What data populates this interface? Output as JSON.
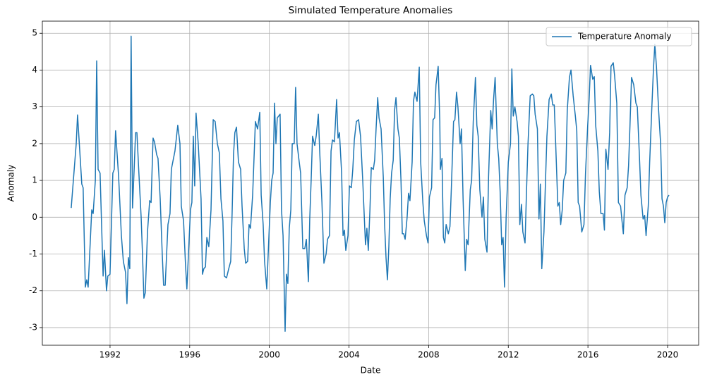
{
  "chart_data": {
    "type": "line",
    "title": "Simulated Temperature Anomalies",
    "xlabel": "Date",
    "ylabel": "Anomaly",
    "x": [
      1990.05,
      1990.3,
      1990.37,
      1990.58,
      1990.65,
      1990.76,
      1990.83,
      1990.9,
      1991.08,
      1991.15,
      1991.26,
      1991.33,
      1991.4,
      1991.5,
      1991.65,
      1991.72,
      1991.82,
      1991.89,
      1992.0,
      1992.14,
      1992.21,
      1992.28,
      1992.43,
      1992.57,
      1992.67,
      1992.78,
      1992.85,
      1992.92,
      1992.99,
      1993.06,
      1993.13,
      1993.21,
      1993.28,
      1993.35,
      1993.45,
      1993.56,
      1993.63,
      1993.7,
      1993.77,
      1993.88,
      1993.99,
      1994.06,
      1994.16,
      1994.23,
      1994.34,
      1994.41,
      1994.52,
      1994.62,
      1994.69,
      1994.77,
      1994.91,
      1995.01,
      1995.08,
      1995.26,
      1995.4,
      1995.51,
      1995.58,
      1995.69,
      1995.79,
      1995.86,
      1995.97,
      1996.04,
      1996.11,
      1996.18,
      1996.25,
      1996.32,
      1996.43,
      1996.57,
      1996.64,
      1996.71,
      1996.79,
      1996.86,
      1996.96,
      1997.07,
      1997.18,
      1997.28,
      1997.39,
      1997.49,
      1997.57,
      1997.67,
      1997.74,
      1997.85,
      1997.96,
      1998.06,
      1998.13,
      1998.2,
      1998.27,
      1998.35,
      1998.45,
      1998.56,
      1998.63,
      1998.74,
      1998.81,
      1998.91,
      1998.98,
      1999.05,
      1999.16,
      1999.3,
      1999.41,
      1999.52,
      1999.59,
      1999.69,
      1999.76,
      1999.87,
      1999.98,
      2000.05,
      2000.12,
      2000.19,
      2000.26,
      2000.33,
      2000.4,
      2000.54,
      2000.61,
      2000.69,
      2000.79,
      2000.86,
      2000.93,
      2001.0,
      2001.08,
      2001.15,
      2001.25,
      2001.32,
      2001.39,
      2001.5,
      2001.57,
      2001.68,
      2001.78,
      2001.86,
      2001.96,
      2002.03,
      2002.1,
      2002.17,
      2002.28,
      2002.35,
      2002.46,
      2002.53,
      2002.64,
      2002.74,
      2002.85,
      2002.92,
      2003.02,
      2003.1,
      2003.17,
      2003.27,
      2003.38,
      2003.45,
      2003.52,
      2003.63,
      2003.7,
      2003.77,
      2003.84,
      2003.95,
      2004.02,
      2004.12,
      2004.19,
      2004.27,
      2004.37,
      2004.48,
      2004.58,
      2004.69,
      2004.76,
      2004.83,
      2004.9,
      2004.97,
      2005.05,
      2005.12,
      2005.22,
      2005.29,
      2005.36,
      2005.44,
      2005.51,
      2005.61,
      2005.72,
      2005.79,
      2005.86,
      2005.93,
      2006.0,
      2006.07,
      2006.14,
      2006.22,
      2006.29,
      2006.36,
      2006.46,
      2006.53,
      2006.61,
      2006.68,
      2006.75,
      2006.82,
      2006.92,
      2006.99,
      2007.06,
      2007.17,
      2007.24,
      2007.31,
      2007.42,
      2007.53,
      2007.6,
      2007.71,
      2007.78,
      2007.89,
      2007.97,
      2008.04,
      2008.15,
      2008.22,
      2008.3,
      2008.37,
      2008.48,
      2008.56,
      2008.59,
      2008.67,
      2008.74,
      2008.81,
      2008.88,
      2008.99,
      2009.07,
      2009.14,
      2009.25,
      2009.32,
      2009.4,
      2009.47,
      2009.58,
      2009.65,
      2009.73,
      2009.84,
      2009.91,
      2009.98,
      2010.09,
      2010.16,
      2010.24,
      2010.35,
      2010.42,
      2010.49,
      2010.57,
      2010.68,
      2010.75,
      2010.82,
      2010.93,
      2011.01,
      2011.12,
      2011.19,
      2011.26,
      2011.34,
      2011.45,
      2011.52,
      2011.59,
      2011.67,
      2011.74,
      2011.81,
      2011.89,
      2012.0,
      2012.11,
      2012.18,
      2012.25,
      2012.33,
      2012.44,
      2012.51,
      2012.58,
      2012.66,
      2012.73,
      2012.84,
      2012.91,
      2012.99,
      2013.1,
      2013.21,
      2013.28,
      2013.35,
      2013.46,
      2013.54,
      2013.61,
      2013.68,
      2013.79,
      2013.87,
      2013.94,
      2014.05,
      2014.16,
      2014.23,
      2014.31,
      2014.38,
      2014.49,
      2014.56,
      2014.63,
      2014.71,
      2014.78,
      2014.89,
      2014.96,
      2015.07,
      2015.15,
      2015.26,
      2015.37,
      2015.44,
      2015.51,
      2015.58,
      2015.69,
      2015.8,
      2015.88,
      2015.99,
      2016.06,
      2016.13,
      2016.24,
      2016.32,
      2016.39,
      2016.5,
      2016.57,
      2016.65,
      2016.76,
      2016.83,
      2016.9,
      2017.01,
      2017.09,
      2017.16,
      2017.27,
      2017.34,
      2017.45,
      2017.53,
      2017.64,
      2017.71,
      2017.78,
      2017.86,
      2017.97,
      2018.04,
      2018.11,
      2018.19,
      2018.3,
      2018.41,
      2018.48,
      2018.59,
      2018.66,
      2018.77,
      2018.85,
      2018.92,
      2019.03,
      2019.1,
      2019.21,
      2019.29,
      2019.36,
      2019.44,
      2019.55,
      2019.65,
      2019.72,
      2019.79,
      2019.86,
      2019.93,
      2020.0,
      2020.07
    ],
    "series": [
      {
        "name": "Temperature Anomaly",
        "color": "#1f77b4",
        "values": [
          0.25,
          2.0,
          2.78,
          0.9,
          0.8,
          -1.9,
          -1.7,
          -1.9,
          0.2,
          0.1,
          1.0,
          4.25,
          1.3,
          1.2,
          -1.6,
          -0.9,
          -2.0,
          -1.6,
          -1.55,
          1.2,
          1.3,
          2.35,
          1.1,
          -0.5,
          -1.2,
          -1.5,
          -2.35,
          -1.1,
          -1.4,
          4.92,
          0.25,
          1.3,
          2.3,
          2.3,
          1.2,
          0.0,
          -1.0,
          -2.2,
          -2.05,
          -0.4,
          0.45,
          0.4,
          2.15,
          2.05,
          1.7,
          1.6,
          0.5,
          -1.0,
          -1.85,
          -1.85,
          -0.2,
          0.1,
          1.3,
          1.8,
          2.5,
          2.0,
          0.3,
          -0.1,
          -1.3,
          -1.95,
          -0.6,
          0.2,
          0.4,
          2.2,
          0.85,
          2.83,
          2.0,
          0.5,
          -1.55,
          -1.4,
          -1.35,
          -0.55,
          -0.8,
          0.2,
          2.65,
          2.6,
          2.0,
          1.75,
          0.5,
          -0.1,
          -1.6,
          -1.65,
          -1.4,
          -1.2,
          0.1,
          1.7,
          2.3,
          2.45,
          1.5,
          1.3,
          0.3,
          -0.85,
          -1.25,
          -1.2,
          -0.2,
          -0.3,
          0.6,
          2.6,
          2.4,
          2.85,
          0.6,
          -0.2,
          -1.2,
          -1.95,
          -0.5,
          0.4,
          1.0,
          1.2,
          3.1,
          2.0,
          2.7,
          2.8,
          0.2,
          -0.5,
          -3.1,
          -1.55,
          -1.8,
          -0.3,
          0.2,
          2.0,
          2.0,
          3.53,
          2.0,
          1.5,
          1.2,
          -0.85,
          -0.85,
          -0.6,
          -1.75,
          -0.05,
          1.0,
          2.2,
          1.95,
          2.2,
          2.8,
          1.8,
          0.4,
          -1.25,
          -1.0,
          -0.6,
          -0.5,
          1.8,
          2.1,
          2.05,
          3.2,
          2.15,
          2.3,
          1.2,
          -0.5,
          -0.35,
          -0.9,
          -0.5,
          0.85,
          0.8,
          1.3,
          2.1,
          2.6,
          2.65,
          2.2,
          1.0,
          0.1,
          -0.75,
          -0.3,
          -0.9,
          0.2,
          1.35,
          1.3,
          1.55,
          2.4,
          3.25,
          2.7,
          2.4,
          1.1,
          -0.2,
          -1.1,
          -1.7,
          -0.8,
          0.5,
          1.2,
          1.55,
          2.9,
          3.25,
          2.4,
          2.15,
          1.0,
          -0.45,
          -0.45,
          -0.6,
          0.0,
          0.65,
          0.45,
          1.5,
          3.15,
          3.4,
          3.15,
          4.08,
          1.5,
          0.4,
          -0.1,
          -0.5,
          -0.7,
          0.55,
          0.8,
          2.65,
          2.7,
          3.6,
          4.1,
          2.6,
          1.3,
          1.6,
          -0.55,
          -0.7,
          -0.2,
          -0.45,
          -0.25,
          0.8,
          2.6,
          2.65,
          3.4,
          3.0,
          2.0,
          2.4,
          0.5,
          -1.45,
          -0.6,
          -0.75,
          0.75,
          1.0,
          2.6,
          3.8,
          2.5,
          2.2,
          0.75,
          0.0,
          0.55,
          -0.6,
          -0.95,
          1.1,
          2.9,
          2.4,
          3.2,
          3.8,
          2.0,
          1.6,
          0.7,
          -0.75,
          -0.55,
          -1.9,
          0.0,
          1.5,
          2.0,
          4.03,
          2.75,
          3.0,
          2.6,
          2.2,
          -0.2,
          0.35,
          -0.4,
          -0.7,
          0.6,
          2.0,
          3.3,
          3.35,
          3.3,
          2.8,
          2.4,
          -0.05,
          0.9,
          -1.4,
          -0.4,
          1.0,
          2.2,
          3.2,
          3.35,
          3.05,
          3.05,
          2.0,
          0.3,
          0.4,
          -0.2,
          0.2,
          1.0,
          1.2,
          2.9,
          3.8,
          4.0,
          3.3,
          2.75,
          2.35,
          0.4,
          0.3,
          -0.4,
          -0.2,
          1.2,
          2.5,
          3.2,
          4.13,
          3.75,
          3.82,
          2.5,
          1.8,
          0.7,
          0.1,
          0.1,
          -0.35,
          1.85,
          1.3,
          2.3,
          4.1,
          4.2,
          3.85,
          3.1,
          0.4,
          0.3,
          -0.1,
          -0.45,
          0.6,
          0.8,
          1.4,
          2.5,
          3.8,
          3.6,
          3.1,
          3.0,
          1.6,
          0.6,
          -0.05,
          0.05,
          -0.5,
          0.3,
          1.5,
          3.0,
          4.0,
          4.7,
          4.1,
          2.9,
          2.0,
          0.5,
          0.3,
          -0.15,
          0.4,
          0.55,
          0.6
        ]
      }
    ],
    "xlim": [
      1988.6,
      2021.56
    ],
    "ylim": [
      -3.48,
      5.33
    ],
    "xticks": [
      1992,
      1996,
      2000,
      2004,
      2008,
      2012,
      2016,
      2020
    ],
    "yticks": [
      -3,
      -2,
      -1,
      0,
      1,
      2,
      3,
      4,
      5
    ],
    "grid": true,
    "legend": "upper right"
  }
}
